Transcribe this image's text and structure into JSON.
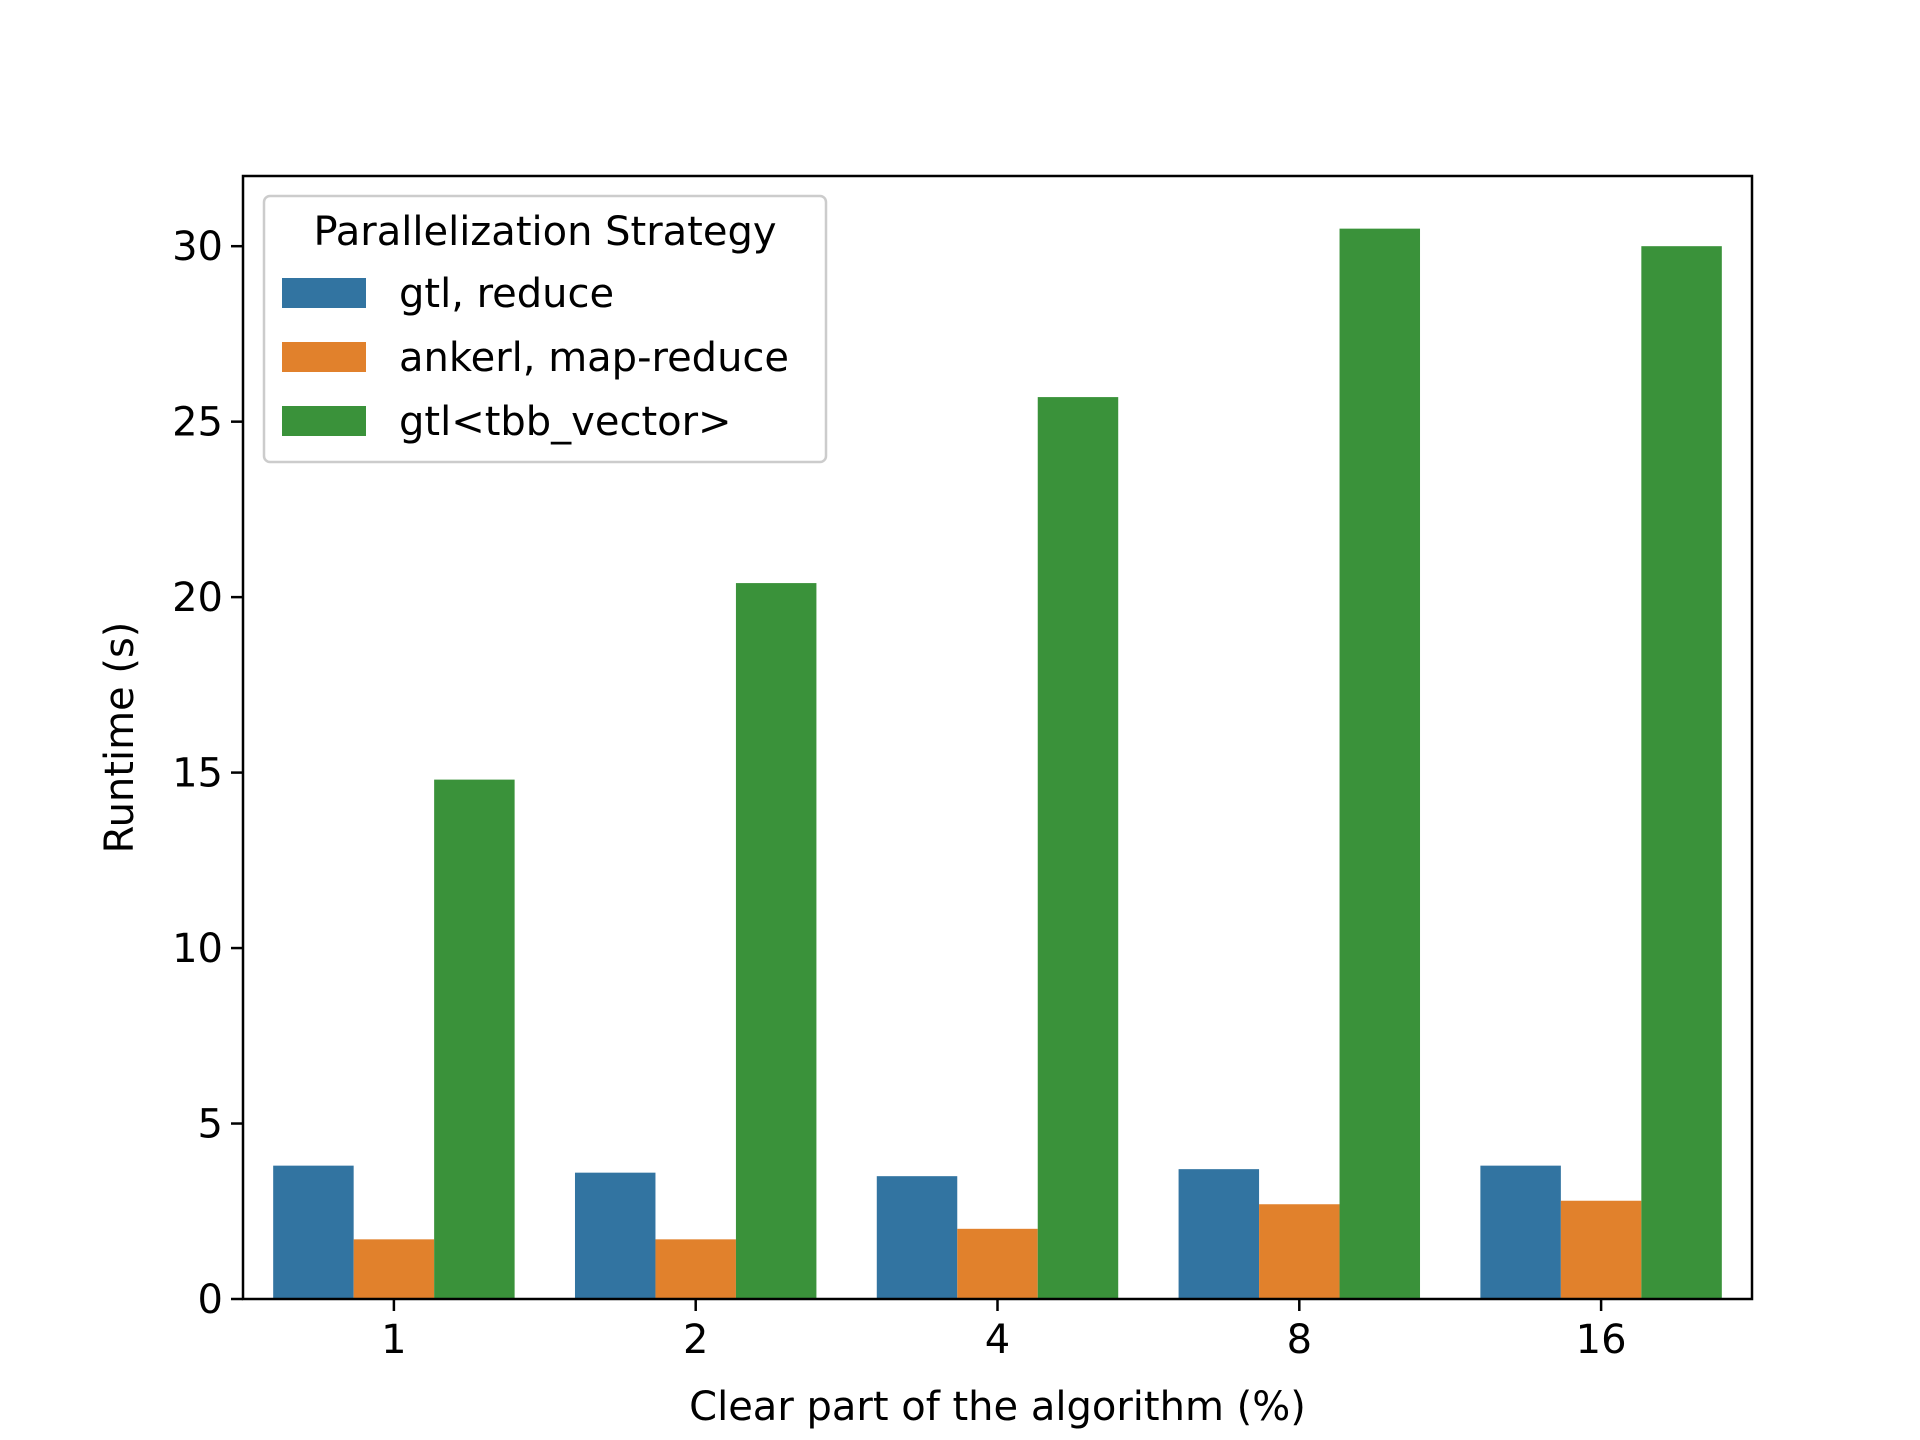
{
  "chart_data": {
    "type": "bar",
    "title": "",
    "xlabel": "Clear part of the algorithm (%)",
    "ylabel": "Runtime (s)",
    "categories": [
      "1",
      "2",
      "4",
      "8",
      "16"
    ],
    "ylim": [
      0,
      32
    ],
    "yticks": [
      0,
      5,
      10,
      15,
      20,
      25,
      30
    ],
    "grid": false,
    "legend": {
      "title": "Parallelization Strategy",
      "placement": "top-left"
    },
    "series": [
      {
        "name": "gtl, reduce",
        "color": "#3274a1",
        "values": [
          3.8,
          3.6,
          3.5,
          3.7,
          3.8
        ]
      },
      {
        "name": "ankerl, map-reduce",
        "color": "#e1812c",
        "values": [
          1.7,
          1.7,
          2.0,
          2.7,
          2.8
        ]
      },
      {
        "name": "gtl<tbb_vector>",
        "color": "#3a923a",
        "values": [
          14.8,
          20.4,
          25.7,
          30.5,
          30.0
        ]
      }
    ]
  }
}
